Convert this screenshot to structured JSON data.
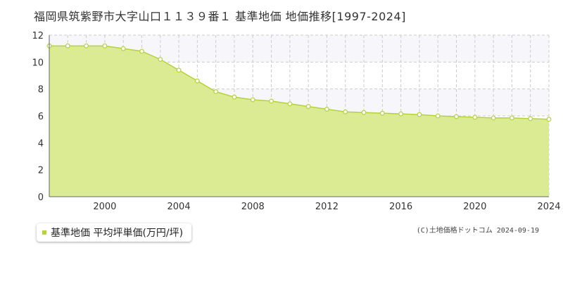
{
  "chart_data": {
    "type": "area",
    "title": "福岡県筑紫野市大字山口１１３９番１ 基準地価 地価推移[1997-2024]",
    "x": [
      1997,
      1998,
      1999,
      2000,
      2001,
      2002,
      2003,
      2004,
      2005,
      2006,
      2007,
      2008,
      2009,
      2010,
      2011,
      2012,
      2013,
      2014,
      2015,
      2016,
      2017,
      2018,
      2019,
      2020,
      2021,
      2022,
      2023,
      2024
    ],
    "series": [
      {
        "name": "基準地価 平均坪単価(万円/坪)",
        "values": [
          11.2,
          11.2,
          11.2,
          11.2,
          11.0,
          10.8,
          10.2,
          9.4,
          8.6,
          7.8,
          7.4,
          7.2,
          7.1,
          6.9,
          6.7,
          6.5,
          6.3,
          6.25,
          6.2,
          6.15,
          6.1,
          6.0,
          5.95,
          5.9,
          5.85,
          5.85,
          5.8,
          5.75
        ]
      }
    ],
    "xticks": [
      2000,
      2004,
      2008,
      2012,
      2016,
      2020,
      2024
    ],
    "yticks": [
      0,
      2,
      4,
      6,
      8,
      10,
      12
    ],
    "xlim": [
      1997,
      2024
    ],
    "ylim": [
      0,
      12
    ],
    "grid": true,
    "legend_position": "bottom-left",
    "colors": {
      "fill": "#dbeb94",
      "line": "#b5d13b",
      "marker_fill": "#ffffff",
      "grid": "#cccccc",
      "band": "#f7f6fa"
    }
  },
  "legend_label": "基準地価 平均坪単価(万円/坪)",
  "credit": "(C)土地価格ドットコム 2024-09-19"
}
